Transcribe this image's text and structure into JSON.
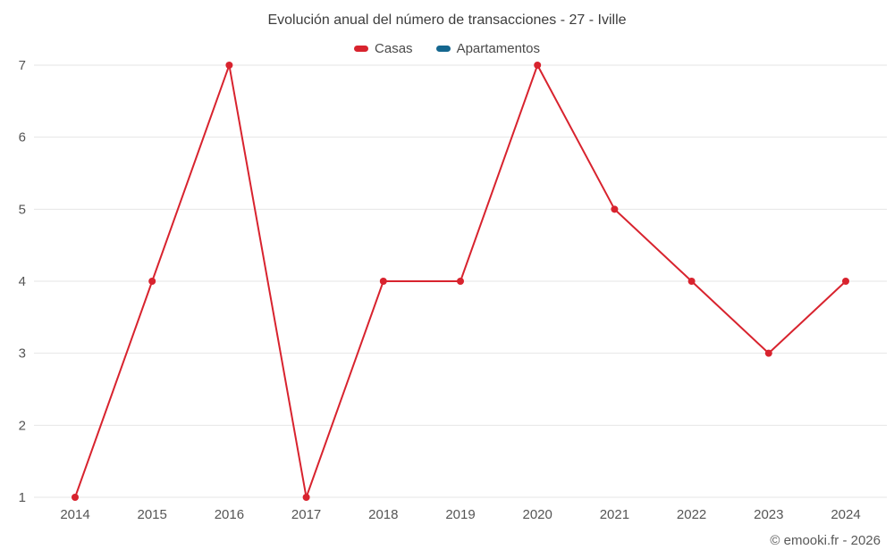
{
  "title": "Evolución anual del número de transacciones - 27 - Iville",
  "attribution": "© emooki.fr - 2026",
  "colors": {
    "casas": "#d8232e",
    "apartamentos": "#15678f",
    "grid": "#e6e6e6",
    "tick_label": "#555555"
  },
  "chart_data": {
    "type": "line",
    "title": "Evolución anual del número de transacciones - 27 - Iville",
    "categories": [
      "2014",
      "2015",
      "2016",
      "2017",
      "2018",
      "2019",
      "2020",
      "2021",
      "2022",
      "2023",
      "2024"
    ],
    "series": [
      {
        "name": "Casas",
        "color": "#d8232e",
        "values": [
          1,
          4,
          7,
          1,
          4,
          4,
          7,
          5,
          4,
          3,
          4
        ]
      },
      {
        "name": "Apartamentos",
        "color": "#15678f",
        "values": []
      }
    ],
    "xlabel": "",
    "ylabel": "",
    "ylim": [
      1,
      7
    ],
    "yticks": [
      1,
      2,
      3,
      4,
      5,
      6,
      7
    ],
    "grid": true,
    "legend_position": "top"
  }
}
